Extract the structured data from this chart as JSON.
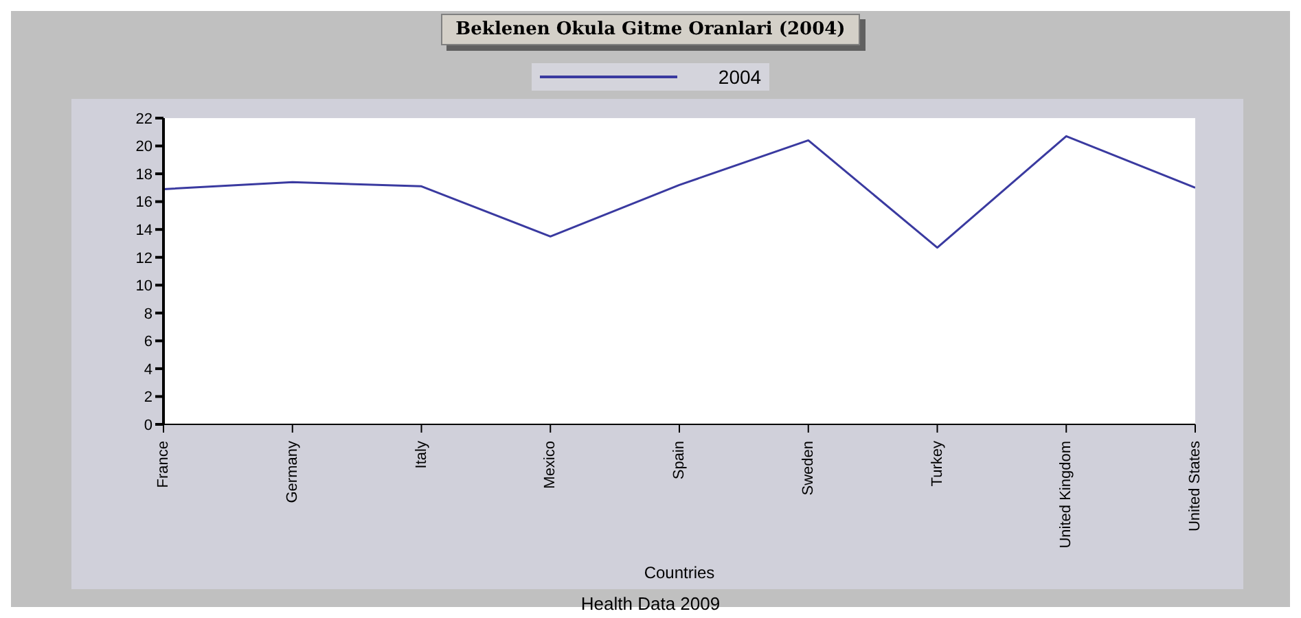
{
  "chart_data": {
    "type": "line",
    "title": "Beklenen Okula Gitme Oranlari (2004)",
    "xlabel": "Countries",
    "annotations": [
      "Health Data 2009"
    ],
    "categories": [
      "France",
      "Germany",
      "Italy",
      "Mexico",
      "Spain",
      "Sweden",
      "Turkey",
      "United Kingdom",
      "United States"
    ],
    "series": [
      {
        "name": "2004",
        "color": "#3a3aa0",
        "values": [
          16.9,
          17.4,
          17.1,
          13.5,
          17.2,
          20.4,
          12.7,
          20.7,
          17.0
        ]
      }
    ],
    "ylim": [
      0,
      22
    ],
    "yticks": [
      0,
      2,
      4,
      6,
      8,
      10,
      12,
      14,
      16,
      18,
      20,
      22
    ],
    "grid": false,
    "legend": "top",
    "marker": "none",
    "line_style": "solid"
  }
}
